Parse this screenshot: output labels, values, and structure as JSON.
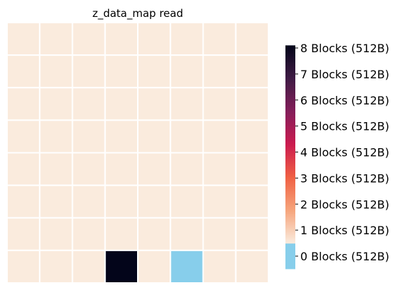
{
  "chart_data": {
    "type": "heatmap",
    "title": "z_data_map read",
    "rows": 8,
    "cols": 8,
    "values": [
      [
        1,
        1,
        1,
        1,
        1,
        1,
        1,
        1
      ],
      [
        1,
        1,
        1,
        1,
        1,
        1,
        1,
        1
      ],
      [
        1,
        1,
        1,
        1,
        1,
        1,
        1,
        1
      ],
      [
        1,
        1,
        1,
        1,
        1,
        1,
        1,
        1
      ],
      [
        1,
        1,
        1,
        1,
        1,
        1,
        1,
        1
      ],
      [
        1,
        1,
        1,
        1,
        1,
        1,
        1,
        1
      ],
      [
        1,
        1,
        1,
        1,
        1,
        1,
        1,
        1
      ],
      [
        1,
        1,
        1,
        8,
        1,
        0,
        1,
        1
      ]
    ],
    "colorbar": {
      "ticks": [
        {
          "value": 8,
          "label": "8 Blocks (512B)"
        },
        {
          "value": 7,
          "label": "7 Blocks (512B)"
        },
        {
          "value": 6,
          "label": "6 Blocks (512B)"
        },
        {
          "value": 5,
          "label": "5 Blocks (512B)"
        },
        {
          "value": 4,
          "label": "4 Blocks (512B)"
        },
        {
          "value": 3,
          "label": "3 Blocks (512B)"
        },
        {
          "value": 2,
          "label": "2 Blocks (512B)"
        },
        {
          "value": 1,
          "label": "1 Blocks (512B)"
        },
        {
          "value": 0,
          "label": "0 Blocks (512B)"
        }
      ],
      "zero_color": "#87ceeb",
      "gradient": [
        "#faebdd",
        "#f6a47b",
        "#f06043",
        "#cb1b4f",
        "#841e5a",
        "#3f1b44",
        "#03051a"
      ]
    },
    "grid_line_color": "#ffffff"
  }
}
